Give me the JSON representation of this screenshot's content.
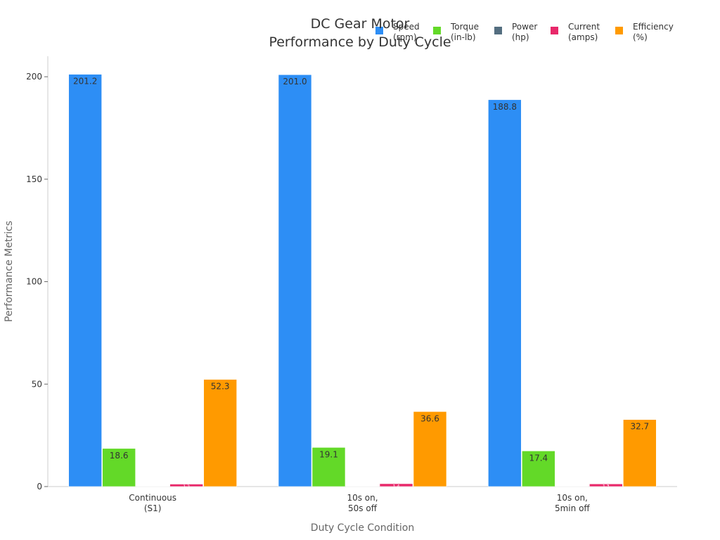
{
  "chart_data": {
    "type": "bar",
    "title_lines": [
      "DC Gear Motor",
      "Performance by Duty Cycle"
    ],
    "xlabel": "Duty Cycle Condition",
    "ylabel": "Performance Metrics",
    "ylim": [
      0,
      210
    ],
    "yticks": [
      0,
      50,
      100,
      150,
      200
    ],
    "grid": false,
    "legend_position": "top-right",
    "categories": [
      [
        "Continuous",
        "(S1)"
      ],
      [
        "10s on,",
        "50s off"
      ],
      [
        "10s on,",
        "5min off"
      ]
    ],
    "series": [
      {
        "name_lines": [
          "Speed",
          "(rpm)"
        ],
        "color": "#2D8EF5",
        "values": [
          201.2,
          201.0,
          188.8
        ],
        "labels": [
          "201.2",
          "201.0",
          "188.8"
        ]
      },
      {
        "name_lines": [
          "Torque",
          "(in-lb)"
        ],
        "color": "#63D928",
        "values": [
          18.6,
          19.1,
          17.4
        ],
        "labels": [
          "18.6",
          "19.1",
          "17.4"
        ]
      },
      {
        "name_lines": [
          "Power",
          "(hp)"
        ],
        "color": "#546E80",
        "values": [
          0.05,
          0.05,
          0.05
        ],
        "labels": [
          "",
          "",
          ""
        ]
      },
      {
        "name_lines": [
          "Current",
          "(amps)"
        ],
        "color": "#E8286A",
        "values": [
          1.2,
          1.4,
          1.3
        ],
        "labels": [
          "1.2",
          "1.4",
          "1.3"
        ]
      },
      {
        "name_lines": [
          "Efficiency",
          "(%)"
        ],
        "color": "#FF9A00",
        "values": [
          52.3,
          36.6,
          32.7
        ],
        "labels": [
          "52.3",
          "36.6",
          "32.7"
        ]
      }
    ]
  }
}
